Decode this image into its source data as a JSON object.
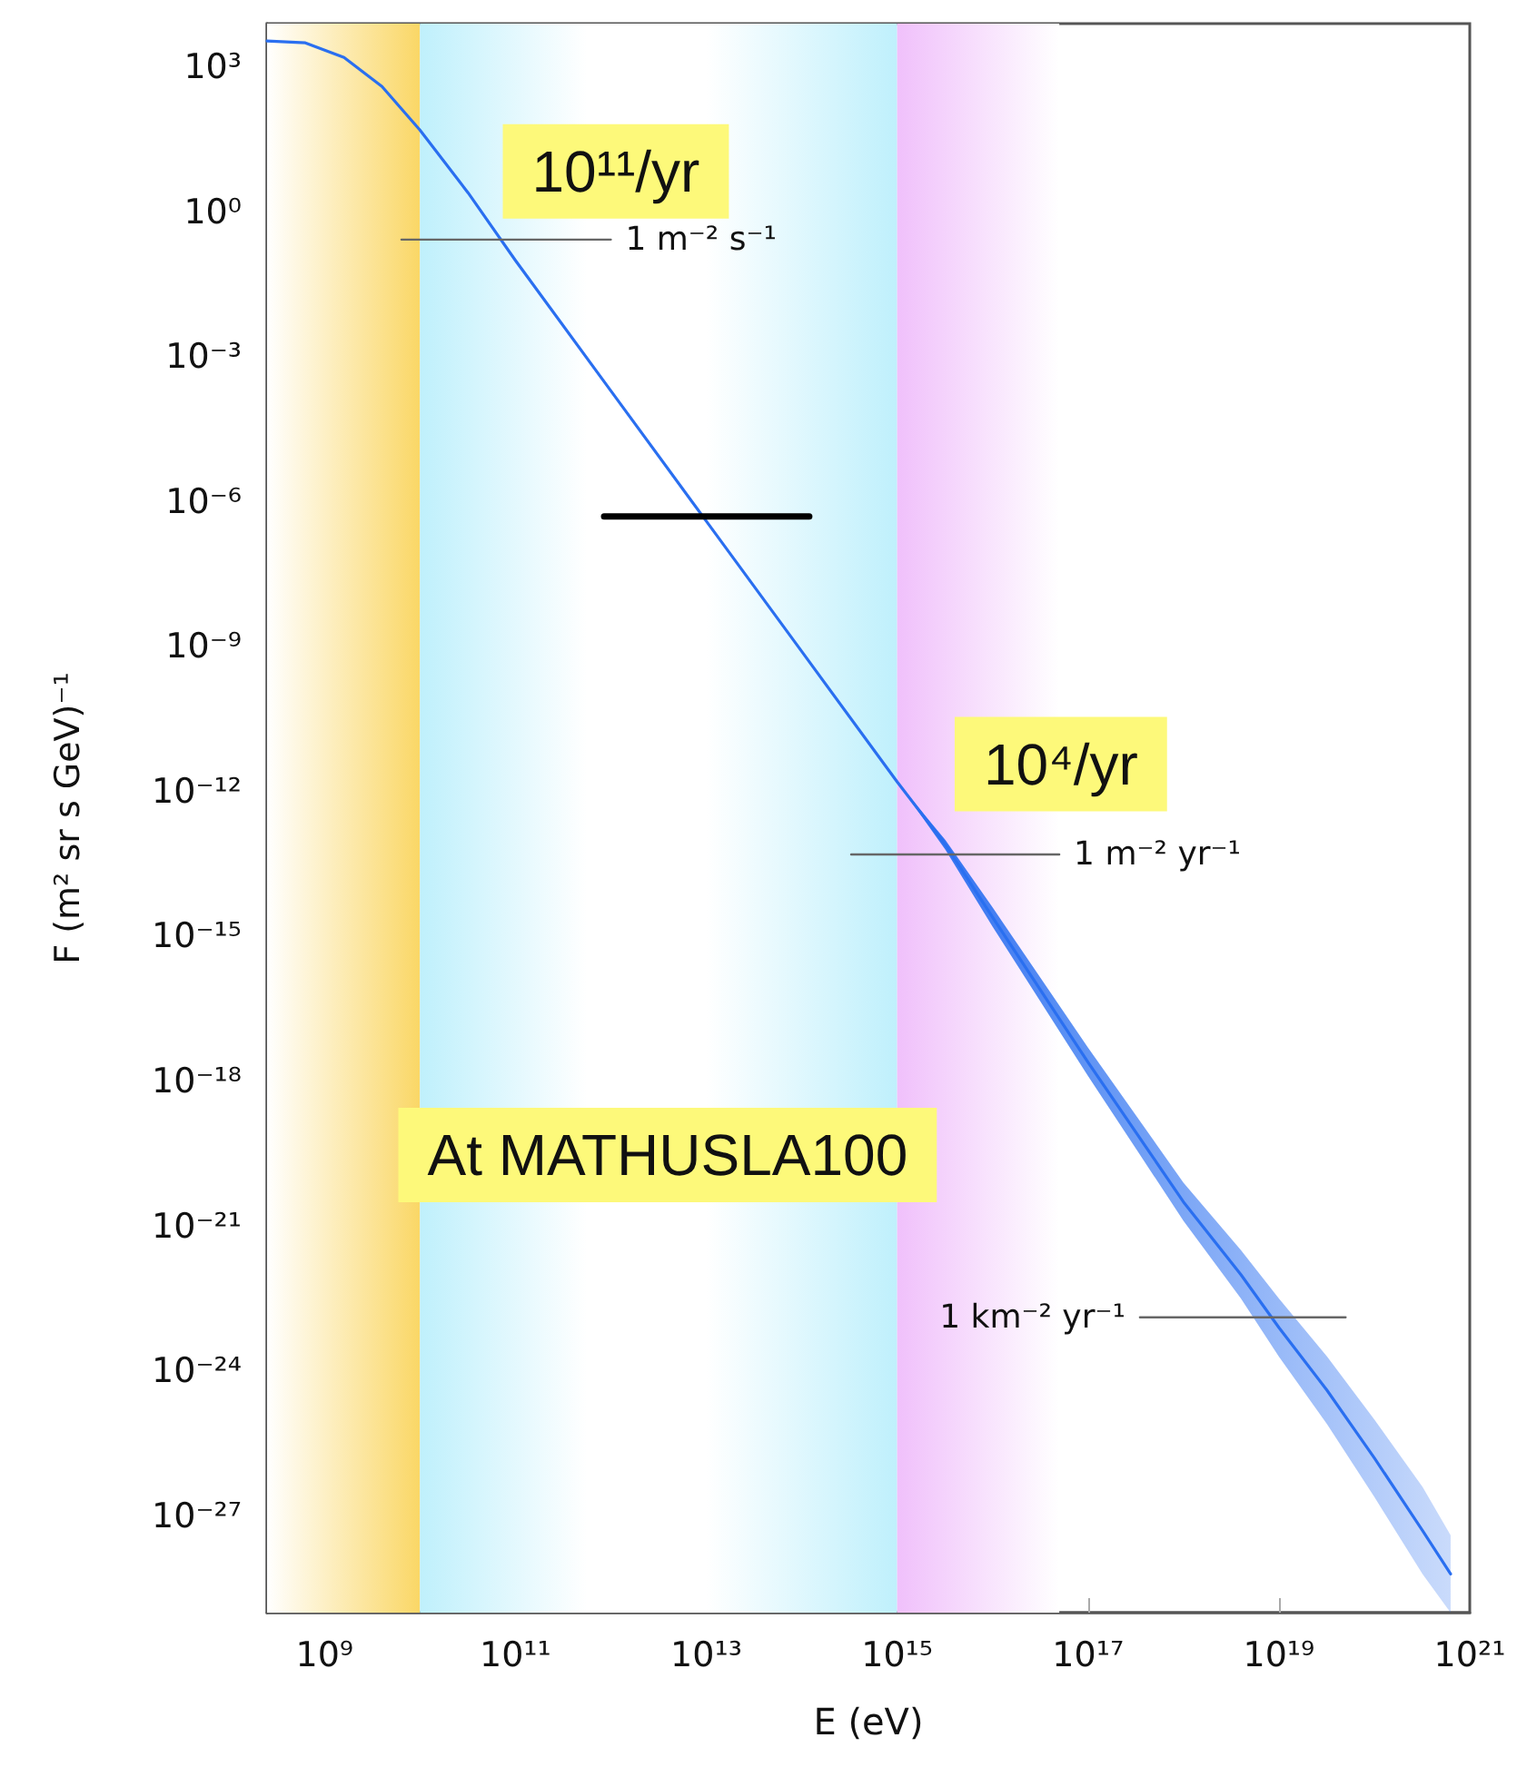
{
  "chart_data": {
    "type": "line",
    "xlabel": "E (eV)",
    "ylabel": "F (m² sr s GeV)⁻¹",
    "log": "xy",
    "grid": false,
    "xlim": [
      250000000.0,
      1e+21
    ],
    "ylim": [
      1e-29,
      8000.0
    ],
    "xticks": [
      {
        "value": 1000000000.0,
        "label": "10⁹"
      },
      {
        "value": 100000000000.0,
        "label": "10¹¹"
      },
      {
        "value": 10000000000000.0,
        "label": "10¹³"
      },
      {
        "value": 1000000000000000.0,
        "label": "10¹⁵"
      },
      {
        "value": 1e+17,
        "label": "10¹⁷"
      },
      {
        "value": 1e+19,
        "label": "10¹⁹"
      },
      {
        "value": 1e+21,
        "label": "10²¹"
      }
    ],
    "yticks": [
      {
        "value": 1000.0,
        "label": "10³"
      },
      {
        "value": 1,
        "label": "10⁰"
      },
      {
        "value": 0.001,
        "label": "10⁻³"
      },
      {
        "value": 1e-06,
        "label": "10⁻⁶"
      },
      {
        "value": 1e-09,
        "label": "10⁻⁹"
      },
      {
        "value": 1e-12,
        "label": "10⁻¹²"
      },
      {
        "value": 1e-15,
        "label": "10⁻¹⁵"
      },
      {
        "value": 1e-18,
        "label": "10⁻¹⁸"
      },
      {
        "value": 1e-21,
        "label": "10⁻²¹"
      },
      {
        "value": 1e-24,
        "label": "10⁻²⁴"
      },
      {
        "value": 1e-27,
        "label": "10⁻²⁷"
      }
    ],
    "series": [
      {
        "color": "#2a6ff0",
        "x": [
          250000000.0,
          630000000.0,
          1600000000.0,
          4000000000.0,
          10000000000.0,
          32000000000.0,
          100000000000.0,
          1000000000000.0,
          10000000000000.0,
          100000000000000.0,
          1000000000000000.0,
          3200000000000000.0,
          1e+16,
          1e+17,
          1e+18,
          4e+18,
          1e+19,
          3.2e+19,
          1e+20,
          3.2e+20,
          6.3e+20
        ],
        "values": [
          3500.0,
          3200.0,
          1600.0,
          400.0,
          50,
          2.5,
          0.1,
          0.0002,
          4e-07,
          8e-10,
          1.6e-12,
          8e-14,
          2.5e-15,
          2.5e-18,
          3.2e-21,
          1e-22,
          8e-24,
          4e-25,
          1.6e-26,
          5e-28,
          6.3e-29
        ],
        "lower": [
          null,
          null,
          null,
          null,
          null,
          null,
          null,
          null,
          null,
          null,
          1.6e-12,
          6.3e-14,
          1.6e-15,
          1.3e-18,
          1.3e-21,
          3.2e-23,
          2e-24,
          8e-26,
          2.5e-27,
          6.3e-29,
          1e-29
        ],
        "upper": [
          null,
          null,
          null,
          null,
          null,
          null,
          null,
          null,
          null,
          null,
          1.6e-12,
          1e-13,
          4e-15,
          5e-18,
          8e-21,
          3.2e-22,
          3.2e-23,
          2e-24,
          1e-25,
          4e-27,
          4e-28
        ]
      },
      {
        "name": "1 m⁻² s⁻¹",
        "color": "#666666",
        "x": [
          6400000000.0,
          1000000000000.0
        ],
        "values": [
          0.27,
          0.27
        ]
      },
      {
        "name": "1 m⁻² yr⁻¹",
        "color": "#666666",
        "x": [
          330000000000000.0,
          5e+16
        ],
        "values": [
          5e-14,
          5e-14
        ]
      },
      {
        "name": "1 km⁻² yr⁻¹",
        "color": "#666666",
        "x": [
          5e+19,
          3.5e+17
        ],
        "values": [
          1.3e-23,
          1.3e-23
        ]
      },
      {
        "color": "#000000",
        "x": [
          850000000000.0,
          120000000000000.0
        ],
        "values": [
          5e-07,
          5e-07
        ]
      }
    ],
    "bands": [
      {
        "axis": "x",
        "from": 250000000.0,
        "to": 10000000000.0,
        "color": "#fad766"
      },
      {
        "axis": "x",
        "from": 10000000000.0,
        "to": 1000000000000000.0,
        "color": "#bff0fc"
      },
      {
        "axis": "x",
        "from": 1000000000000000.0,
        "to": 5e+16,
        "color": "#f0c0fb"
      }
    ],
    "annotations": [
      "10¹¹/yr",
      "10⁴/yr",
      "At MATHUSLA100"
    ]
  }
}
